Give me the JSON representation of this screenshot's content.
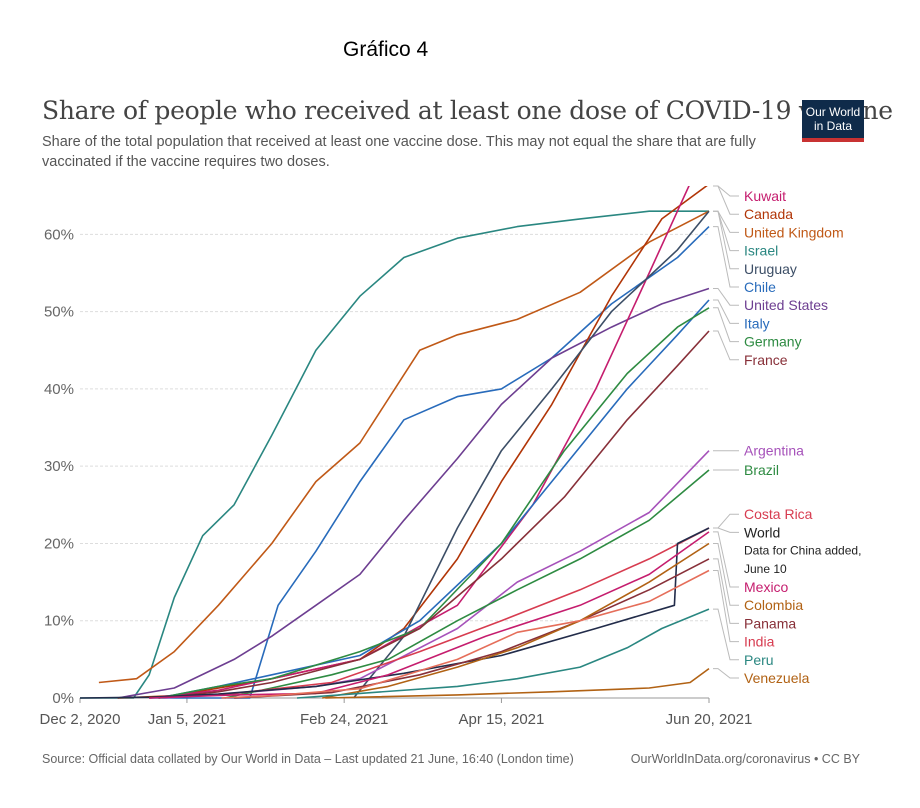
{
  "figure_label": "Gráfico 4",
  "logo": {
    "line1": "Our World",
    "line2": "in Data"
  },
  "footer": {
    "source": "Source: Official data collated by Our World in Data – Last updated 21 June, 16:40 (London time)",
    "license": "OurWorldInData.org/coronavirus • CC BY"
  },
  "chart_data": {
    "type": "line",
    "title": "Share of people who received at least one dose of COVID-19 vaccine",
    "subtitle": "Share of the total population that received at least one vaccine dose. This may not equal the share that are fully vaccinated if the vaccine requires two doses.",
    "x_start": "2020-12-02",
    "x_end": "2021-06-20",
    "x_ticks": [
      "2020-12-02",
      "2021-01-05",
      "2021-02-24",
      "2021-04-15",
      "2021-06-20"
    ],
    "x_tick_labels": [
      "Dec 2, 2020",
      "Jan 5, 2021",
      "Feb 24, 2021",
      "Apr 15, 2021",
      "Jun 20, 2021"
    ],
    "ylim": [
      0,
      66
    ],
    "y_ticks": [
      0,
      10,
      20,
      30,
      40,
      50,
      60
    ],
    "y_tick_labels": [
      "0%",
      "10%",
      "20%",
      "30%",
      "40%",
      "50%",
      "60%"
    ],
    "grid": true,
    "series": [
      {
        "name": "Israel",
        "color": "#2a8781",
        "points": [
          [
            "2020-12-02",
            0
          ],
          [
            "2020-12-19",
            0
          ],
          [
            "2020-12-24",
            3
          ],
          [
            "2021-01-01",
            13
          ],
          [
            "2021-01-10",
            21
          ],
          [
            "2021-01-20",
            25
          ],
          [
            "2021-02-01",
            34
          ],
          [
            "2021-02-15",
            45
          ],
          [
            "2021-03-01",
            52
          ],
          [
            "2021-03-15",
            57
          ],
          [
            "2021-04-01",
            59.5
          ],
          [
            "2021-04-20",
            61
          ],
          [
            "2021-05-10",
            62
          ],
          [
            "2021-06-01",
            63
          ],
          [
            "2021-06-20",
            63
          ]
        ]
      },
      {
        "name": "United Kingdom",
        "color": "#c05917",
        "points": [
          [
            "2020-12-08",
            2
          ],
          [
            "2020-12-20",
            2.5
          ],
          [
            "2021-01-01",
            6
          ],
          [
            "2021-01-15",
            12
          ],
          [
            "2021-02-01",
            20
          ],
          [
            "2021-02-15",
            28
          ],
          [
            "2021-03-01",
            33
          ],
          [
            "2021-03-20",
            45
          ],
          [
            "2021-04-01",
            47
          ],
          [
            "2021-04-20",
            49
          ],
          [
            "2021-05-10",
            52.5
          ],
          [
            "2021-06-01",
            59
          ],
          [
            "2021-06-20",
            63
          ]
        ]
      },
      {
        "name": "Chile",
        "color": "#286bbb",
        "points": [
          [
            "2020-12-24",
            0
          ],
          [
            "2021-01-25",
            0
          ],
          [
            "2021-02-03",
            12
          ],
          [
            "2021-02-15",
            19
          ],
          [
            "2021-03-01",
            28
          ],
          [
            "2021-03-15",
            36
          ],
          [
            "2021-04-01",
            39
          ],
          [
            "2021-04-15",
            40
          ],
          [
            "2021-05-01",
            44
          ],
          [
            "2021-05-20",
            51
          ],
          [
            "2021-06-10",
            57
          ],
          [
            "2021-06-20",
            61
          ]
        ]
      },
      {
        "name": "United States",
        "color": "#6d3e91",
        "points": [
          [
            "2020-12-14",
            0
          ],
          [
            "2021-01-01",
            1.3
          ],
          [
            "2021-01-20",
            5
          ],
          [
            "2021-02-01",
            8
          ],
          [
            "2021-02-15",
            12
          ],
          [
            "2021-03-01",
            16
          ],
          [
            "2021-03-15",
            23
          ],
          [
            "2021-04-01",
            31
          ],
          [
            "2021-04-15",
            38
          ],
          [
            "2021-05-01",
            44
          ],
          [
            "2021-05-20",
            48
          ],
          [
            "2021-06-05",
            51
          ],
          [
            "2021-06-20",
            53
          ]
        ]
      },
      {
        "name": "Canada",
        "color": "#b13507",
        "points": [
          [
            "2020-12-14",
            0
          ],
          [
            "2021-01-01",
            0.3
          ],
          [
            "2021-02-01",
            2.5
          ],
          [
            "2021-03-01",
            5
          ],
          [
            "2021-03-15",
            9
          ],
          [
            "2021-04-01",
            18
          ],
          [
            "2021-04-15",
            28
          ],
          [
            "2021-05-01",
            38
          ],
          [
            "2021-05-20",
            52
          ],
          [
            "2021-06-05",
            62
          ],
          [
            "2021-06-20",
            66.5
          ]
        ]
      },
      {
        "name": "Kuwait",
        "color": "#c51d6e",
        "points": [
          [
            "2020-12-24",
            0
          ],
          [
            "2021-01-15",
            1
          ],
          [
            "2021-02-01",
            2.5
          ],
          [
            "2021-03-01",
            5
          ],
          [
            "2021-04-01",
            12
          ],
          [
            "2021-04-25",
            25
          ],
          [
            "2021-05-15",
            40
          ],
          [
            "2021-06-01",
            55
          ],
          [
            "2021-06-15",
            67.5
          ]
        ]
      },
      {
        "name": "Uruguay",
        "color": "#3c4e66",
        "points": [
          [
            "2021-02-27",
            0
          ],
          [
            "2021-03-15",
            8
          ],
          [
            "2021-04-01",
            22
          ],
          [
            "2021-04-15",
            32
          ],
          [
            "2021-05-01",
            40
          ],
          [
            "2021-05-20",
            50
          ],
          [
            "2021-06-10",
            58
          ],
          [
            "2021-06-20",
            63
          ]
        ]
      },
      {
        "name": "Italy",
        "color": "#286bbb",
        "points": [
          [
            "2020-12-27",
            0
          ],
          [
            "2021-01-15",
            1.5
          ],
          [
            "2021-02-01",
            3
          ],
          [
            "2021-03-01",
            5.5
          ],
          [
            "2021-03-20",
            10
          ],
          [
            "2021-04-15",
            20
          ],
          [
            "2021-05-05",
            30
          ],
          [
            "2021-05-25",
            40
          ],
          [
            "2021-06-10",
            47
          ],
          [
            "2021-06-20",
            51.5
          ]
        ]
      },
      {
        "name": "Germany",
        "color": "#2e8b42",
        "points": [
          [
            "2020-12-27",
            0
          ],
          [
            "2021-01-15",
            1.5
          ],
          [
            "2021-02-01",
            2.5
          ],
          [
            "2021-03-01",
            6
          ],
          [
            "2021-03-20",
            9
          ],
          [
            "2021-04-15",
            20
          ],
          [
            "2021-05-05",
            32
          ],
          [
            "2021-05-25",
            42
          ],
          [
            "2021-06-10",
            48
          ],
          [
            "2021-06-20",
            50.5
          ]
        ]
      },
      {
        "name": "France",
        "color": "#883039",
        "points": [
          [
            "2020-12-27",
            0
          ],
          [
            "2021-01-15",
            0.8
          ],
          [
            "2021-02-01",
            2
          ],
          [
            "2021-03-01",
            5
          ],
          [
            "2021-03-20",
            9
          ],
          [
            "2021-04-15",
            18
          ],
          [
            "2021-05-05",
            26
          ],
          [
            "2021-05-25",
            36
          ],
          [
            "2021-06-10",
            43
          ],
          [
            "2021-06-20",
            47.5
          ]
        ]
      },
      {
        "name": "Argentina",
        "color": "#a652ba",
        "points": [
          [
            "2020-12-29",
            0
          ],
          [
            "2021-01-20",
            0.6
          ],
          [
            "2021-02-15",
            1.5
          ],
          [
            "2021-03-01",
            2.5
          ],
          [
            "2021-04-01",
            9
          ],
          [
            "2021-04-20",
            15
          ],
          [
            "2021-05-10",
            19
          ],
          [
            "2021-06-01",
            24
          ],
          [
            "2021-06-20",
            32
          ]
        ]
      },
      {
        "name": "Brazil",
        "color": "#2e8b42",
        "points": [
          [
            "2021-01-17",
            0
          ],
          [
            "2021-02-01",
            1.3
          ],
          [
            "2021-02-20",
            3
          ],
          [
            "2021-03-10",
            5
          ],
          [
            "2021-04-01",
            10
          ],
          [
            "2021-04-20",
            14
          ],
          [
            "2021-05-10",
            18
          ],
          [
            "2021-06-01",
            23
          ],
          [
            "2021-06-20",
            29.5
          ]
        ]
      },
      {
        "name": "Costa Rica",
        "color": "#d73c50",
        "points": [
          [
            "2020-12-24",
            0
          ],
          [
            "2021-01-20",
            0.6
          ],
          [
            "2021-02-20",
            2
          ],
          [
            "2021-03-20",
            6
          ],
          [
            "2021-04-15",
            10
          ],
          [
            "2021-05-10",
            14
          ],
          [
            "2021-06-01",
            18
          ],
          [
            "2021-06-20",
            22
          ]
        ]
      },
      {
        "name": "World",
        "color": "#222c4a",
        "points": [
          [
            "2020-12-02",
            0
          ],
          [
            "2020-12-25",
            0.1
          ],
          [
            "2021-01-15",
            0.5
          ],
          [
            "2021-02-15",
            1.5
          ],
          [
            "2021-03-15",
            3.2
          ],
          [
            "2021-04-15",
            5.5
          ],
          [
            "2021-05-15",
            9
          ],
          [
            "2021-06-09",
            12
          ],
          [
            "2021-06-10",
            20
          ],
          [
            "2021-06-20",
            22
          ]
        ]
      },
      {
        "name": "Mexico",
        "color": "#c51d6e",
        "points": [
          [
            "2020-12-24",
            0
          ],
          [
            "2021-01-20",
            0.4
          ],
          [
            "2021-02-15",
            0.6
          ],
          [
            "2021-03-10",
            3
          ],
          [
            "2021-04-10",
            8
          ],
          [
            "2021-05-10",
            12
          ],
          [
            "2021-06-01",
            16
          ],
          [
            "2021-06-20",
            21.5
          ]
        ]
      },
      {
        "name": "Panama",
        "color": "#883039",
        "points": [
          [
            "2021-01-20",
            0
          ],
          [
            "2021-02-20",
            0.7
          ],
          [
            "2021-03-20",
            3
          ],
          [
            "2021-04-15",
            6
          ],
          [
            "2021-05-10",
            10
          ],
          [
            "2021-06-01",
            14
          ],
          [
            "2021-06-20",
            18
          ]
        ]
      },
      {
        "name": "Colombia",
        "color": "#b16214",
        "points": [
          [
            "2021-02-17",
            0
          ],
          [
            "2021-03-10",
            1.5
          ],
          [
            "2021-04-01",
            4
          ],
          [
            "2021-04-20",
            6.5
          ],
          [
            "2021-05-10",
            10
          ],
          [
            "2021-06-01",
            15
          ],
          [
            "2021-06-20",
            20
          ]
        ]
      },
      {
        "name": "India",
        "color": "#e56e5a",
        "points": [
          [
            "2021-01-16",
            0
          ],
          [
            "2021-02-01",
            0.3
          ],
          [
            "2021-03-01",
            1.2
          ],
          [
            "2021-04-01",
            5
          ],
          [
            "2021-04-20",
            8.5
          ],
          [
            "2021-05-10",
            10
          ],
          [
            "2021-06-01",
            12.5
          ],
          [
            "2021-06-20",
            16.5
          ]
        ]
      },
      {
        "name": "Peru",
        "color": "#2a8781",
        "points": [
          [
            "2021-02-09",
            0
          ],
          [
            "2021-03-01",
            0.6
          ],
          [
            "2021-04-01",
            1.5
          ],
          [
            "2021-04-20",
            2.5
          ],
          [
            "2021-05-10",
            4
          ],
          [
            "2021-05-25",
            6.5
          ],
          [
            "2021-06-05",
            9
          ],
          [
            "2021-06-20",
            11.5
          ]
        ]
      },
      {
        "name": "Venezuela",
        "color": "#b16214",
        "points": [
          [
            "2021-02-18",
            0
          ],
          [
            "2021-04-01",
            0.4
          ],
          [
            "2021-05-01",
            0.8
          ],
          [
            "2021-06-01",
            1.3
          ],
          [
            "2021-06-14",
            2
          ],
          [
            "2021-06-20",
            3.8
          ]
        ]
      }
    ],
    "labels": [
      {
        "series": "Kuwait",
        "text": "Kuwait",
        "color": "#c51d6e"
      },
      {
        "series": "Canada",
        "text": "Canada",
        "color": "#b13507"
      },
      {
        "series": "United Kingdom",
        "text": "United Kingdom",
        "color": "#c05917"
      },
      {
        "series": "Israel",
        "text": "Israel",
        "color": "#2a8781"
      },
      {
        "series": "Chile",
        "text": "Chile",
        "color": "#286bbb"
      },
      {
        "series": "Uruguay",
        "text": "Uruguay",
        "color": "#3c4e66"
      },
      {
        "series": "United States",
        "text": "United States",
        "color": "#6d3e91"
      },
      {
        "series": "Italy",
        "text": "Italy",
        "color": "#286bbb"
      },
      {
        "series": "Germany",
        "text": "Germany",
        "color": "#2e8b42"
      },
      {
        "series": "France",
        "text": "France",
        "color": "#883039"
      },
      {
        "series": "Argentina",
        "text": "Argentina",
        "color": "#a652ba"
      },
      {
        "series": "Brazil",
        "text": "Brazil",
        "color": "#2e8b42"
      },
      {
        "series": "Costa Rica",
        "text": "Costa Rica",
        "color": "#d73c50"
      },
      {
        "series": "World",
        "text": "World",
        "color": "#222222"
      },
      {
        "series": "Mexico",
        "text": "Mexico",
        "color": "#c51d6e"
      },
      {
        "series": "Panama",
        "text": "Panama",
        "color": "#883039"
      },
      {
        "series": "Colombia",
        "text": "Colombia",
        "color": "#b16214"
      },
      {
        "series": "India",
        "text": "India",
        "color": "#d73c50"
      },
      {
        "series": "Peru",
        "text": "Peru",
        "color": "#2a8781"
      },
      {
        "series": "Venezuela",
        "text": "Venezuela",
        "color": "#b16214"
      }
    ],
    "annotations": [
      {
        "series": "World",
        "lines": [
          "Data for China added,",
          "June 10"
        ],
        "color": "#222222"
      }
    ]
  }
}
